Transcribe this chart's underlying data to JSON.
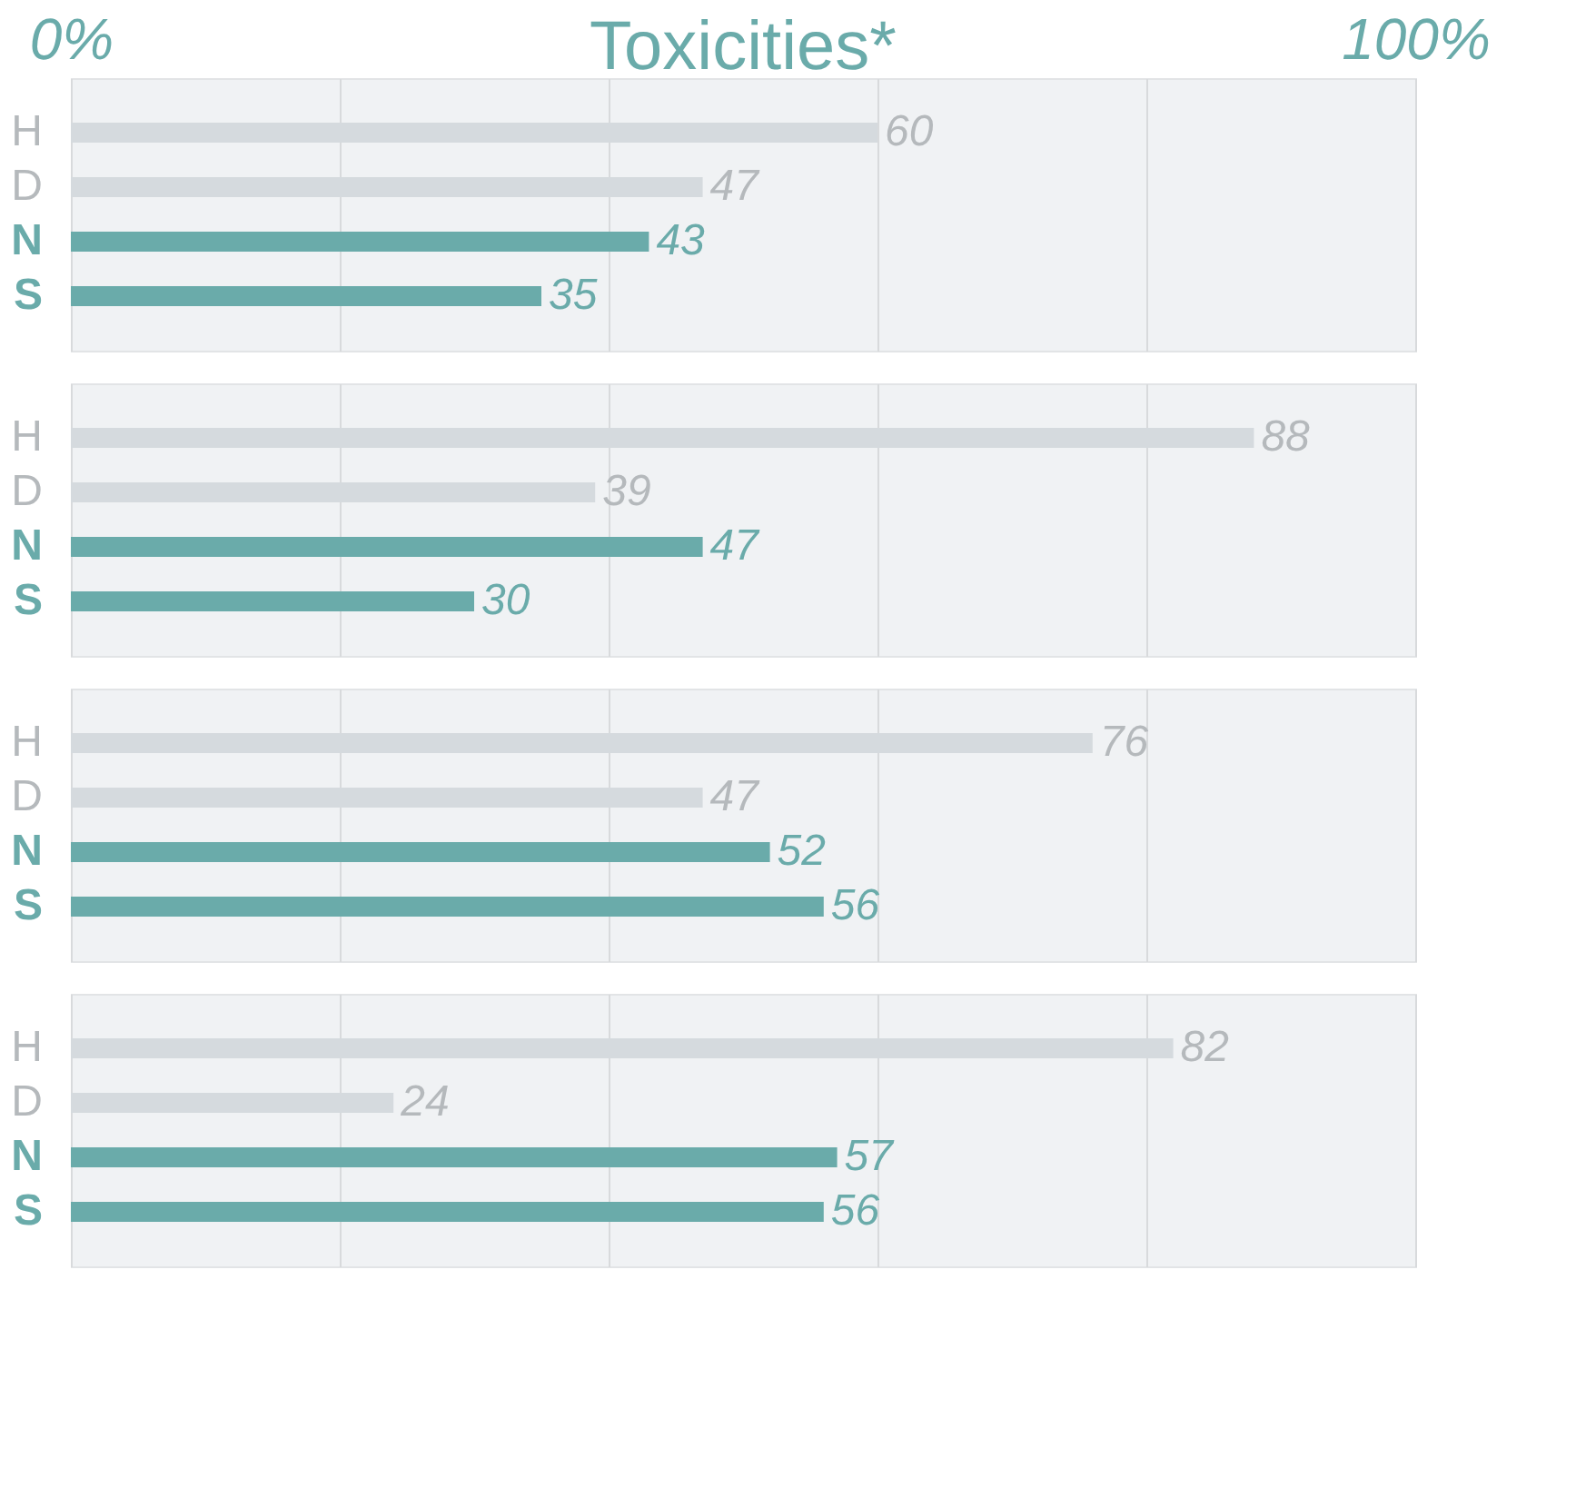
{
  "chart_data": [
    {
      "type": "bar",
      "orientation": "horizontal",
      "title": "Toxicities*",
      "categories": [
        "H",
        "D",
        "N",
        "S"
      ],
      "values": [
        60,
        47,
        43,
        35
      ],
      "colors": [
        "#d5dade",
        "#d5dade",
        "#6aabaa",
        "#6aabaa"
      ],
      "xlim": [
        0,
        100
      ],
      "xticks": [
        {
          "value": 0,
          "label": "0%"
        },
        {
          "value": 20,
          "label": null
        },
        {
          "value": 40,
          "label": null
        },
        {
          "value": 60,
          "label": null
        },
        {
          "value": 80,
          "label": null
        },
        {
          "value": 100,
          "label": "100%"
        }
      ],
      "grid": "x",
      "data_labels": true
    },
    {
      "type": "bar",
      "orientation": "horizontal",
      "categories": [
        "H",
        "D",
        "N",
        "S"
      ],
      "values": [
        88,
        39,
        47,
        30
      ],
      "colors": [
        "#d5dade",
        "#d5dade",
        "#6aabaa",
        "#6aabaa"
      ],
      "xlim": [
        0,
        100
      ],
      "xticks": [
        {
          "value": 0,
          "label": null
        },
        {
          "value": 20,
          "label": null
        },
        {
          "value": 40,
          "label": null
        },
        {
          "value": 60,
          "label": null
        },
        {
          "value": 80,
          "label": null
        },
        {
          "value": 100,
          "label": null
        }
      ],
      "grid": "x",
      "data_labels": true,
      "tick_labels": "y"
    },
    {
      "type": "bar",
      "orientation": "horizontal",
      "categories": [
        "H",
        "D",
        "N",
        "S"
      ],
      "values": [
        76,
        47,
        52,
        56
      ],
      "colors": [
        "#d5dade",
        "#d5dade",
        "#6aabaa",
        "#6aabaa"
      ],
      "xlim": [
        0,
        100
      ],
      "xticks": [
        {
          "value": 0,
          "label": null
        },
        {
          "value": 20,
          "label": null
        },
        {
          "value": 40,
          "label": null
        },
        {
          "value": 60,
          "label": null
        },
        {
          "value": 80,
          "label": null
        },
        {
          "value": 100,
          "label": null
        }
      ],
      "grid": "x",
      "data_labels": true,
      "tick_labels": "y"
    },
    {
      "type": "bar",
      "orientation": "horizontal",
      "categories": [
        "H",
        "D",
        "N",
        "S"
      ],
      "values": [
        82,
        24,
        57,
        56
      ],
      "colors": [
        "#d5dade",
        "#d5dade",
        "#6aabaa",
        "#6aabaa"
      ],
      "xlim": [
        0,
        100
      ],
      "xticks": [
        {
          "value": 0,
          "label": null
        },
        {
          "value": 20,
          "label": null
        },
        {
          "value": 40,
          "label": null
        },
        {
          "value": 60,
          "label": null
        },
        {
          "value": 80,
          "label": null
        },
        {
          "value": 100,
          "label": null
        }
      ],
      "grid": "x",
      "data_labels": true,
      "tick_labels": "y"
    }
  ]
}
